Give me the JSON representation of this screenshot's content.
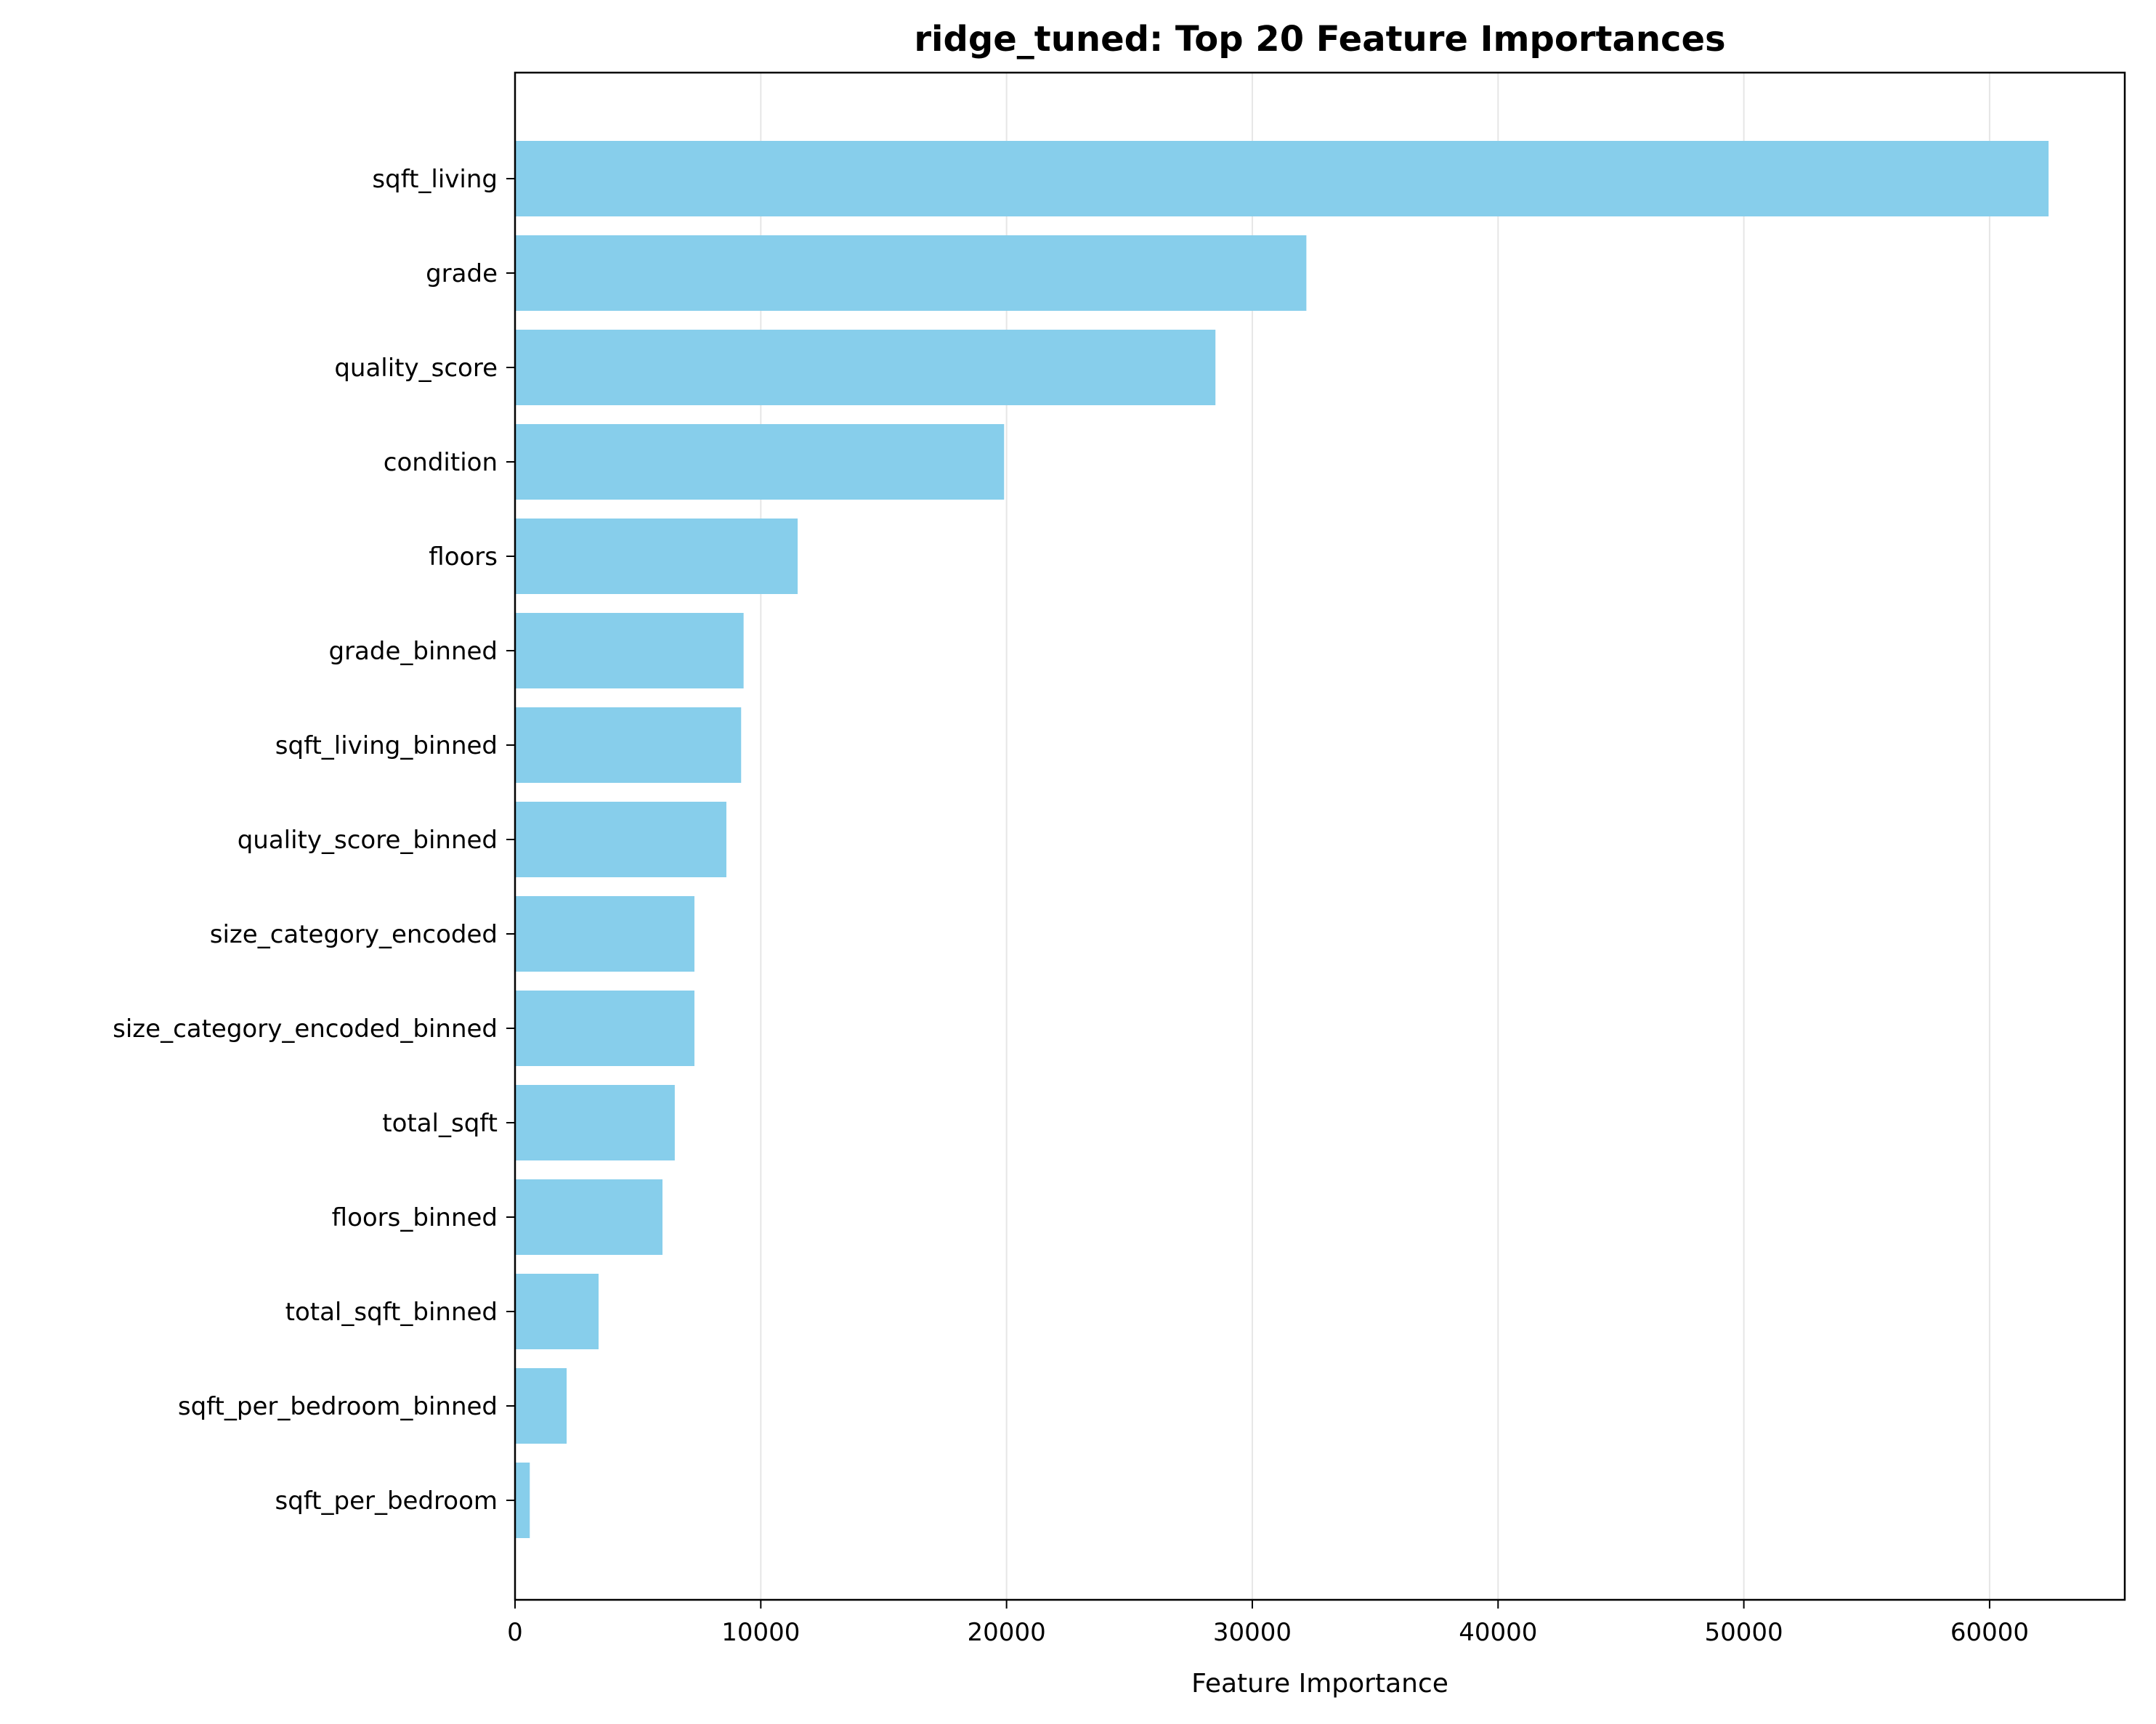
{
  "chart_data": {
    "type": "bar",
    "orientation": "horizontal",
    "title": "ridge_tuned: Top 20 Feature Importances",
    "xlabel": "Feature Importance",
    "ylabel": "",
    "categories": [
      "sqft_living",
      "grade",
      "quality_score",
      "condition",
      "floors",
      "grade_binned",
      "sqft_living_binned",
      "quality_score_binned",
      "size_category_encoded",
      "size_category_encoded_binned",
      "total_sqft",
      "floors_binned",
      "total_sqft_binned",
      "sqft_per_bedroom_binned",
      "sqft_per_bedroom"
    ],
    "values": [
      62400,
      32200,
      28500,
      19900,
      11500,
      9300,
      9200,
      8600,
      7300,
      7300,
      6500,
      6000,
      3400,
      2100,
      600
    ],
    "xlim": [
      0,
      65500
    ],
    "xticks": [
      0,
      10000,
      20000,
      30000,
      40000,
      50000,
      60000
    ],
    "xtick_labels": [
      "0",
      "10000",
      "20000",
      "30000",
      "40000",
      "50000",
      "60000"
    ],
    "grid": "vertical",
    "legend": "none",
    "colors": {
      "bar": "#87ceeb",
      "grid": "#e6e6e6",
      "axis": "#000000"
    }
  }
}
